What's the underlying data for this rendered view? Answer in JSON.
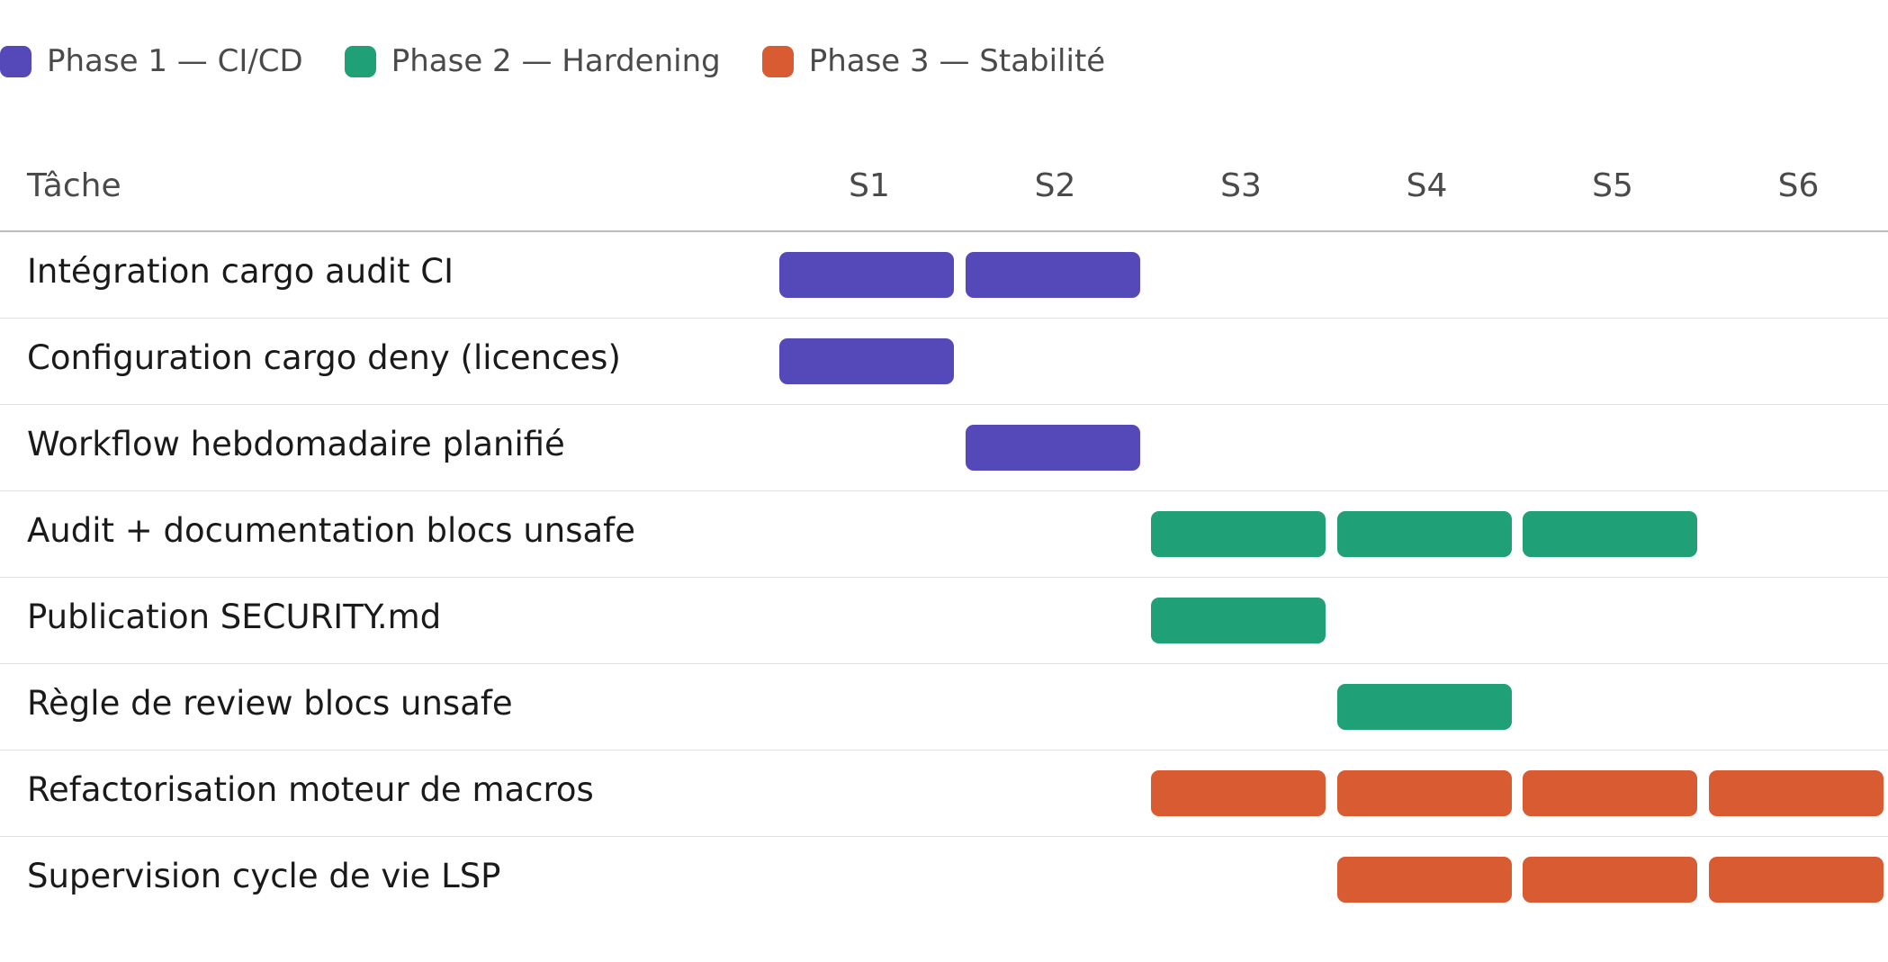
{
  "legend": [
    {
      "label": "Phase 1 — CI/CD",
      "color": "#5549b9"
    },
    {
      "label": "Phase 2 — Hardening",
      "color": "#1fa076"
    },
    {
      "label": "Phase 3 — Stabilité",
      "color": "#d95b32"
    }
  ],
  "chart_data": {
    "type": "gantt",
    "task_header": "Tâche",
    "weeks": [
      "S1",
      "S2",
      "S3",
      "S4",
      "S5",
      "S6"
    ],
    "tasks": [
      {
        "label": "Intégration cargo audit CI",
        "phase": 0,
        "weeks": [
          1,
          2
        ]
      },
      {
        "label": "Configuration cargo deny (licences)",
        "phase": 0,
        "weeks": [
          1
        ]
      },
      {
        "label": "Workflow hebdomadaire planifié",
        "phase": 0,
        "weeks": [
          2
        ]
      },
      {
        "label": "Audit + documentation blocs unsafe",
        "phase": 1,
        "weeks": [
          3,
          4,
          5
        ]
      },
      {
        "label": "Publication SECURITY.md",
        "phase": 1,
        "weeks": [
          3
        ]
      },
      {
        "label": "Règle de review blocs unsafe",
        "phase": 1,
        "weeks": [
          4
        ]
      },
      {
        "label": "Refactorisation moteur de macros",
        "phase": 2,
        "weeks": [
          3,
          4,
          5,
          6
        ]
      },
      {
        "label": "Supervision cycle de vie LSP",
        "phase": 2,
        "weeks": [
          4,
          5,
          6
        ]
      }
    ]
  }
}
